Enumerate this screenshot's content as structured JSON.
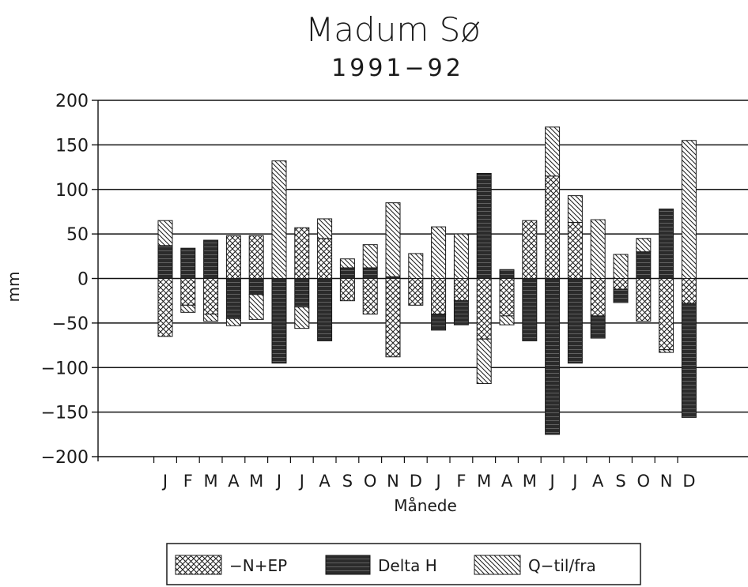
{
  "chart_data": {
    "type": "bar",
    "stacked": true,
    "title": "Madum Sø",
    "subtitle": "1991−92",
    "xlabel": "Månede",
    "ylabel": "mm",
    "ylim": [
      -200,
      200
    ],
    "yticks": [
      200,
      150,
      100,
      50,
      0,
      -50,
      -100,
      -150,
      -200
    ],
    "ytick_labels": [
      "200",
      "150",
      "100",
      "50",
      "0",
      "−50",
      "−100",
      "−150",
      "−200"
    ],
    "grid": true,
    "legend_position": "bottom",
    "categories": [
      "J",
      "F",
      "M",
      "A",
      "M",
      "J",
      "J",
      "A",
      "S",
      "O",
      "N",
      "D",
      "J",
      "F",
      "M",
      "A",
      "M",
      "J",
      "J",
      "A",
      "S",
      "O",
      "N",
      "D"
    ],
    "series": [
      {
        "name": "−N+EP",
        "pattern": "crosshatch",
        "values": [
          -65,
          -30,
          -40,
          48,
          48,
          0,
          57,
          45,
          -25,
          -40,
          -88,
          -30,
          -40,
          -25,
          -68,
          -42,
          65,
          115,
          63,
          -42,
          -12,
          -48,
          -80,
          -28
        ]
      },
      {
        "name": "Delta H",
        "pattern": "solid-dark",
        "values": [
          37,
          34,
          43,
          -45,
          -18,
          -95,
          -32,
          -70,
          12,
          12,
          2,
          0,
          -18,
          -27,
          118,
          10,
          -70,
          -175,
          -95,
          -25,
          -15,
          30,
          78,
          -128
        ]
      },
      {
        "name": "Q−til/fra",
        "pattern": "diagonal",
        "values": [
          28,
          -8,
          -8,
          -8,
          -28,
          132,
          -24,
          22,
          10,
          26,
          83,
          28,
          58,
          50,
          -50,
          -10,
          0,
          55,
          30,
          66,
          27,
          15,
          -3,
          155
        ]
      }
    ],
    "legend": [
      {
        "label": "−N+EP",
        "pattern": "crosshatch"
      },
      {
        "label": "Delta H",
        "pattern": "solid-dark"
      },
      {
        "label": "Q−til/fra",
        "pattern": "diagonal"
      }
    ]
  },
  "colors": {
    "ink": "#1a1a1a",
    "dark_fill": "#2b2b2b",
    "grid": "#111111"
  }
}
